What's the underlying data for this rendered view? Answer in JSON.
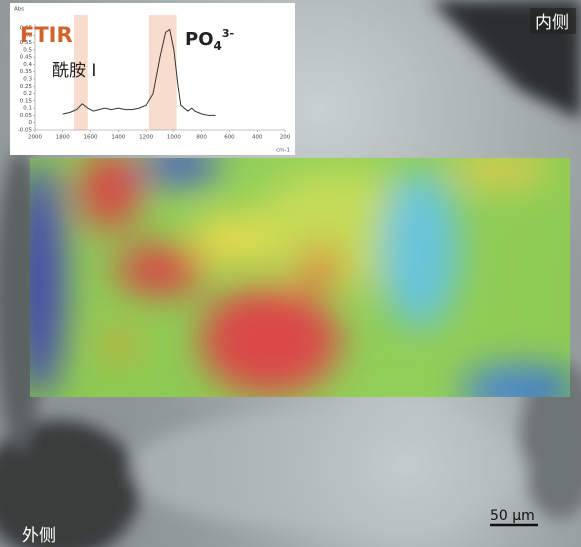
{
  "chart_data": {
    "type": "line",
    "title": "FTIR",
    "y_label": "Abs",
    "x_label": "cm-1",
    "annotations": [
      "酰胺 I"
    ],
    "phosphate": {
      "base": "PO",
      "sub": "4",
      "sup": "3-"
    },
    "x": [
      1800,
      1750,
      1700,
      1660,
      1620,
      1580,
      1540,
      1500,
      1450,
      1400,
      1350,
      1300,
      1250,
      1200,
      1150,
      1100,
      1060,
      1030,
      1000,
      970,
      950,
      900,
      870,
      850,
      800,
      750,
      700
    ],
    "values": [
      0.06,
      0.07,
      0.09,
      0.13,
      0.1,
      0.08,
      0.09,
      0.1,
      0.09,
      0.1,
      0.09,
      0.09,
      0.1,
      0.12,
      0.2,
      0.45,
      0.62,
      0.64,
      0.5,
      0.25,
      0.12,
      0.08,
      0.1,
      0.08,
      0.06,
      0.05,
      0.05
    ],
    "color": "#333333",
    "bands": [
      [
        1720,
        1620
      ],
      [
        1180,
        980
      ]
    ],
    "xlim": [
      2000,
      200
    ],
    "xticks": [
      2000,
      1800,
      1600,
      1400,
      1200,
      1000,
      800,
      600,
      400,
      200
    ],
    "ylim": [
      -0.05,
      0.65
    ],
    "yticks": [
      0.65,
      0.6,
      0.55,
      0.5,
      0.45,
      0.4,
      0.35,
      0.3,
      0.25,
      0.2,
      0.15,
      0.1,
      0.05,
      0,
      -0.05
    ]
  },
  "labels": {
    "inner": "内侧",
    "outer": "外侧",
    "scale_bar": "50 μm"
  }
}
